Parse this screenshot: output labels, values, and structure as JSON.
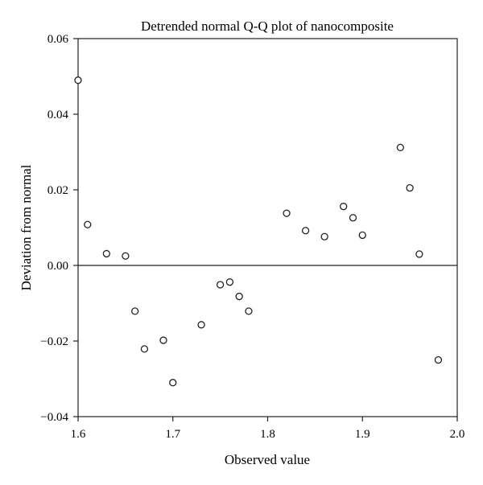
{
  "chart_data": {
    "type": "scatter",
    "title": "Detrended normal Q-Q plot of nanocomposite",
    "xlabel": "Observed value",
    "ylabel": "Deviation from normal",
    "xlim": [
      1.6,
      2.0
    ],
    "ylim": [
      -0.04,
      0.06
    ],
    "x_ticks": [
      "1.6",
      "1.7",
      "1.8",
      "1.9",
      "2.0"
    ],
    "x_tick_values": [
      1.6,
      1.7,
      1.8,
      1.9,
      2.0
    ],
    "y_ticks": [
      "0.06",
      "0.04",
      "0.02",
      "0.00",
      "−0.02",
      "−0.04"
    ],
    "y_tick_values": [
      0.06,
      0.04,
      0.02,
      0.0,
      -0.02,
      -0.04
    ],
    "reference_line_y": 0.0,
    "grid": false,
    "marker": "open-circle",
    "points": [
      {
        "x": 1.6,
        "y": 0.049
      },
      {
        "x": 1.61,
        "y": 0.0108
      },
      {
        "x": 1.63,
        "y": 0.0031
      },
      {
        "x": 1.65,
        "y": 0.0025
      },
      {
        "x": 1.66,
        "y": -0.0121
      },
      {
        "x": 1.67,
        "y": -0.0221
      },
      {
        "x": 1.69,
        "y": -0.0198
      },
      {
        "x": 1.7,
        "y": -0.031
      },
      {
        "x": 1.73,
        "y": -0.0157
      },
      {
        "x": 1.75,
        "y": -0.0051
      },
      {
        "x": 1.76,
        "y": -0.0044
      },
      {
        "x": 1.77,
        "y": -0.0082
      },
      {
        "x": 1.78,
        "y": -0.0121
      },
      {
        "x": 1.82,
        "y": 0.0138
      },
      {
        "x": 1.84,
        "y": 0.0092
      },
      {
        "x": 1.86,
        "y": 0.0076
      },
      {
        "x": 1.88,
        "y": 0.0156
      },
      {
        "x": 1.89,
        "y": 0.0126
      },
      {
        "x": 1.9,
        "y": 0.008
      },
      {
        "x": 1.94,
        "y": 0.0312
      },
      {
        "x": 1.95,
        "y": 0.0205
      },
      {
        "x": 1.96,
        "y": 0.003
      },
      {
        "x": 1.98,
        "y": -0.025
      }
    ]
  }
}
